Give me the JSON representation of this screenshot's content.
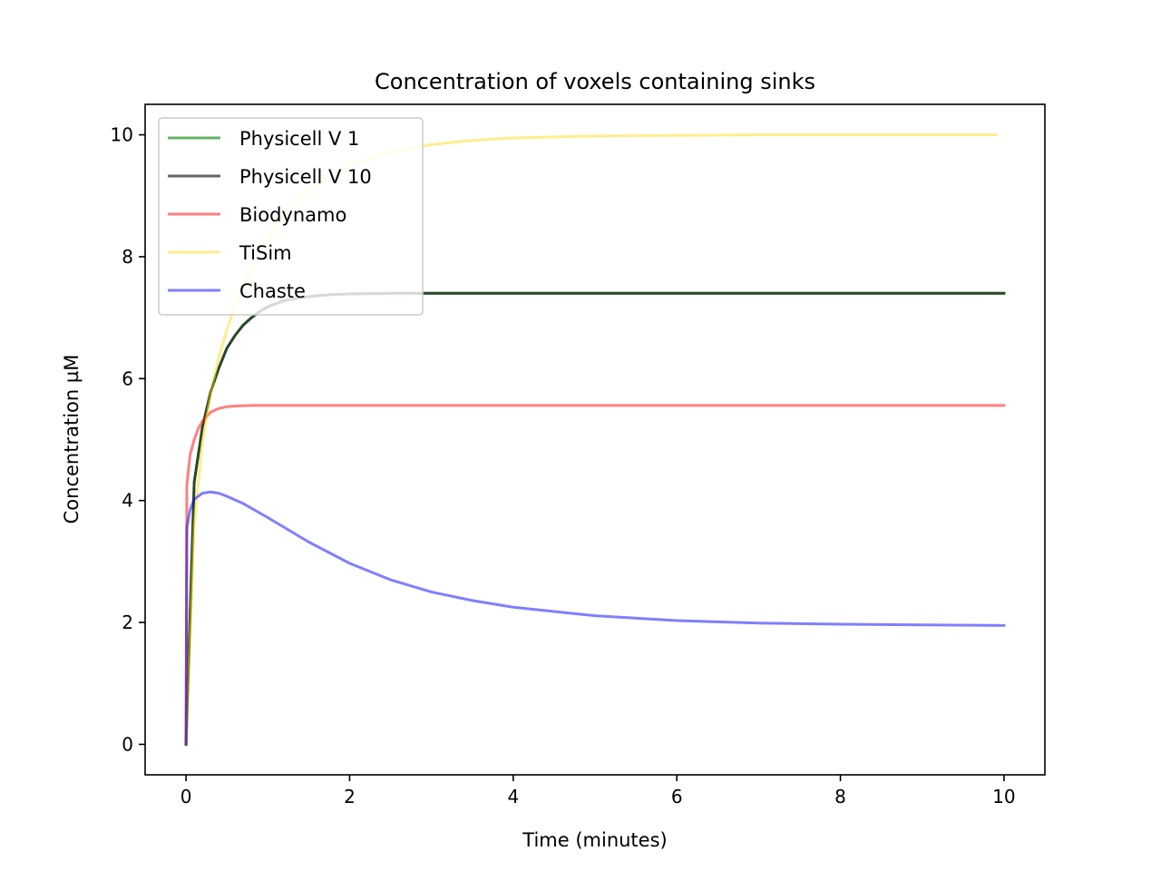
{
  "chart_data": {
    "type": "line",
    "title": "Concentration of voxels containing sinks",
    "xlabel": "Time (minutes)",
    "ylabel": "Concentration µM",
    "xlim": [
      -0.5,
      10.5
    ],
    "ylim": [
      -0.5,
      10.5
    ],
    "xticks": [
      0,
      2,
      4,
      6,
      8,
      10
    ],
    "yticks": [
      0,
      2,
      4,
      6,
      8,
      10
    ],
    "grid": false,
    "legend_position": "upper-left",
    "series": [
      {
        "name": "Physicell V 1",
        "color": "#008000",
        "opacity": 0.6,
        "x": [
          0,
          0.1,
          0.2,
          0.3,
          0.4,
          0.5,
          0.6,
          0.7,
          0.8,
          0.9,
          1.0,
          1.2,
          1.4,
          1.6,
          1.8,
          2.0,
          2.5,
          3.0,
          4.0,
          5.0,
          6.0,
          7.0,
          8.0,
          9.0,
          10.0
        ],
        "y": [
          0,
          4.3,
          5.2,
          5.78,
          6.17,
          6.5,
          6.71,
          6.88,
          7.0,
          7.1,
          7.18,
          7.28,
          7.33,
          7.36,
          7.38,
          7.39,
          7.4,
          7.4,
          7.4,
          7.4,
          7.4,
          7.4,
          7.4,
          7.4,
          7.4
        ]
      },
      {
        "name": "Physicell V 10",
        "color": "#000000",
        "opacity": 0.6,
        "x": [
          0,
          0.1,
          0.2,
          0.3,
          0.4,
          0.5,
          0.6,
          0.7,
          0.8,
          0.9,
          1.0,
          1.2,
          1.4,
          1.6,
          1.8,
          2.0,
          2.5,
          3.0,
          4.0,
          5.0,
          6.0,
          7.0,
          8.0,
          9.0,
          10.0
        ],
        "y": [
          0,
          4.3,
          5.2,
          5.78,
          6.17,
          6.5,
          6.71,
          6.88,
          7.0,
          7.1,
          7.18,
          7.28,
          7.33,
          7.36,
          7.38,
          7.39,
          7.4,
          7.4,
          7.4,
          7.4,
          7.4,
          7.4,
          7.4,
          7.4,
          7.4
        ]
      },
      {
        "name": "Biodynamo",
        "color": "#ff0000",
        "opacity": 0.5,
        "x": [
          0,
          0.01,
          0.05,
          0.1,
          0.15,
          0.2,
          0.3,
          0.4,
          0.5,
          0.6,
          0.8,
          1.0,
          1.5,
          2.0,
          3.0,
          4.0,
          5.0,
          6.0,
          7.0,
          8.0,
          9.0,
          10.0
        ],
        "y": [
          0,
          4.25,
          4.75,
          5.0,
          5.18,
          5.3,
          5.45,
          5.51,
          5.54,
          5.55,
          5.56,
          5.56,
          5.56,
          5.56,
          5.56,
          5.56,
          5.56,
          5.56,
          5.56,
          5.56,
          5.56,
          5.56
        ]
      },
      {
        "name": "TiSim",
        "color": "#ffd700",
        "opacity": 0.45,
        "x": [
          0,
          0.1,
          0.2,
          0.3,
          0.4,
          0.5,
          0.6,
          0.8,
          1.0,
          1.2,
          1.5,
          2.0,
          2.5,
          3.0,
          3.5,
          4.0,
          5.0,
          6.0,
          7.0,
          8.0,
          9.0,
          9.9
        ],
        "y": [
          0,
          3.6,
          4.95,
          5.75,
          6.35,
          6.8,
          7.2,
          7.8,
          8.3,
          8.7,
          9.1,
          9.5,
          9.72,
          9.84,
          9.91,
          9.95,
          9.98,
          9.99,
          10.0,
          10.0,
          10.0,
          10.0
        ]
      },
      {
        "name": "Chaste",
        "color": "#0000ff",
        "opacity": 0.5,
        "x": [
          0,
          0.01,
          0.05,
          0.1,
          0.2,
          0.3,
          0.4,
          0.5,
          0.7,
          1.0,
          1.5,
          2.0,
          2.5,
          3.0,
          3.5,
          4.0,
          5.0,
          6.0,
          7.0,
          8.0,
          9.0,
          10.0
        ],
        "y": [
          0,
          3.55,
          3.85,
          4.02,
          4.12,
          4.14,
          4.12,
          4.07,
          3.95,
          3.72,
          3.32,
          2.97,
          2.7,
          2.5,
          2.36,
          2.25,
          2.11,
          2.03,
          1.99,
          1.97,
          1.96,
          1.95
        ]
      }
    ]
  }
}
